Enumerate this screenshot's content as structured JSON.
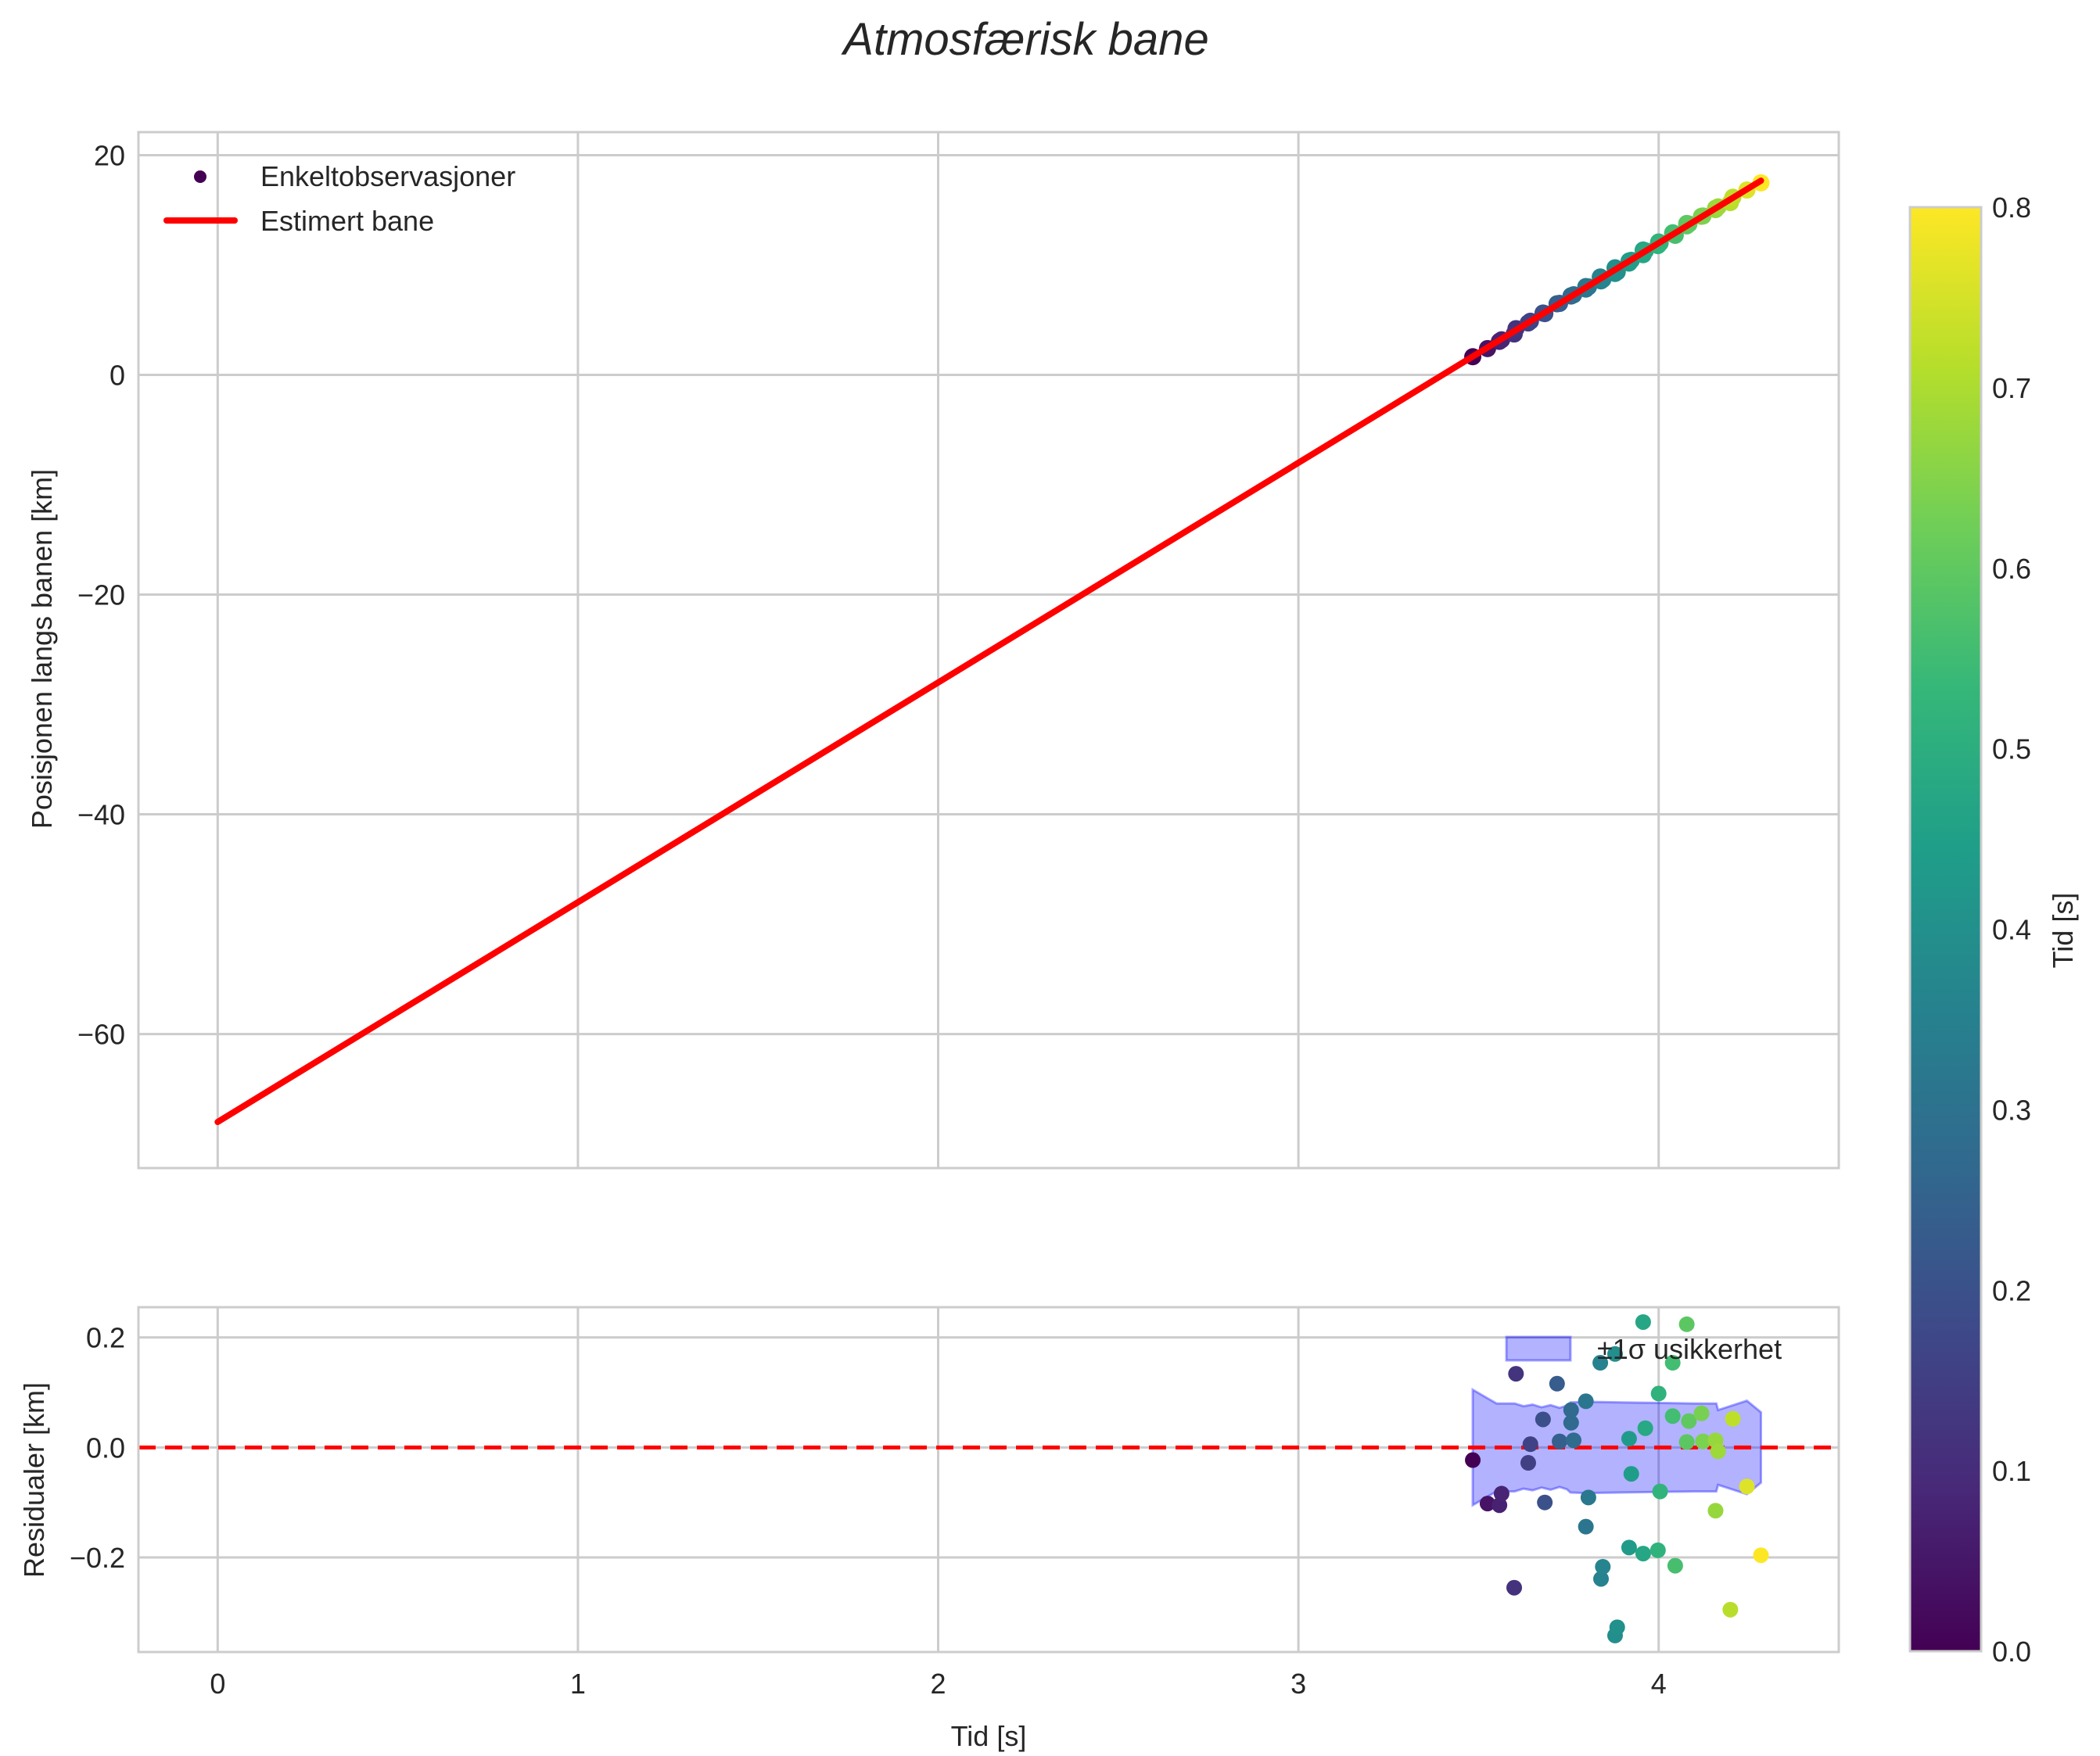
{
  "figure": {
    "title": "Atmosfærisk bane",
    "background": "#ffffff",
    "grid_color": "#cccccc",
    "spine_color": "#cccccc"
  },
  "chart_data": [
    {
      "type": "scatter",
      "panel": "top",
      "title": "Atmosfærisk bane",
      "xlabel": "",
      "ylabel": "Posisjonen langs banen [km]",
      "xlim": [
        -0.22,
        4.5
      ],
      "ylim": [
        -72.2,
        22.1
      ],
      "xticks": [
        0,
        1,
        2,
        3,
        4
      ],
      "yticks": [
        20,
        0,
        -20,
        -40,
        -60
      ],
      "ytick_labels": [
        "20",
        "0",
        "−20",
        "−40",
        "−60"
      ],
      "grid": true,
      "legend": {
        "position": "upper left",
        "entries": [
          {
            "label": "Enkeltobservasjoner",
            "kind": "marker",
            "color": "#440154"
          },
          {
            "label": "Estimert bane",
            "kind": "line",
            "color": "#ff0000"
          }
        ]
      },
      "series": [
        {
          "name": "Estimert bane",
          "kind": "line",
          "color": "#ff0000",
          "x": [
            0.0,
            4.284
          ],
          "y": [
            -68.0,
            17.68
          ]
        },
        {
          "name": "Enkeltobservasjoner",
          "kind": "scatter",
          "colormap": "viridis",
          "note": "y = -68 + 20*t + residual; color = t - 3.484"
        }
      ]
    },
    {
      "type": "scatter",
      "panel": "bottom",
      "xlabel": "Tid [s]",
      "ylabel": "Residualer [km]",
      "xlim": [
        -0.22,
        4.5
      ],
      "ylim": [
        -0.372,
        0.255
      ],
      "xticks": [
        0,
        1,
        2,
        3,
        4
      ],
      "xtick_labels": [
        "0",
        "1",
        "2",
        "3",
        "4"
      ],
      "yticks": [
        0.2,
        0.0,
        -0.2
      ],
      "ytick_labels": [
        "0.2",
        "0.0",
        "−0.2"
      ],
      "grid": true,
      "zero_line": {
        "y": 0.0,
        "color": "#ff0000",
        "style": "dashed"
      },
      "legend": {
        "position": "upper right",
        "entries": [
          {
            "label": "±1σ usikkerhet",
            "kind": "patch",
            "color": "#0000ff",
            "alpha": 0.3
          }
        ]
      },
      "band": {
        "label": "±1σ usikkerhet",
        "color": "#0000ff",
        "alpha": 0.3,
        "upper": [
          [
            3.484,
            0.105
          ],
          [
            3.55,
            0.08
          ],
          [
            3.6,
            0.08
          ],
          [
            3.625,
            0.075
          ],
          [
            3.65,
            0.078
          ],
          [
            3.675,
            0.073
          ],
          [
            3.7,
            0.077
          ],
          [
            3.725,
            0.072
          ],
          [
            3.745,
            0.076
          ],
          [
            3.755,
            0.082
          ],
          [
            3.8,
            0.083
          ],
          [
            3.9,
            0.082
          ],
          [
            4.0,
            0.081
          ],
          [
            4.1,
            0.08
          ],
          [
            4.16,
            0.08
          ],
          [
            4.165,
            0.068
          ],
          [
            4.245,
            0.085
          ],
          [
            4.284,
            0.064
          ]
        ],
        "lower": [
          [
            3.484,
            -0.105
          ],
          [
            3.55,
            -0.08
          ],
          [
            3.6,
            -0.08
          ],
          [
            3.625,
            -0.075
          ],
          [
            3.65,
            -0.078
          ],
          [
            3.675,
            -0.073
          ],
          [
            3.7,
            -0.077
          ],
          [
            3.725,
            -0.072
          ],
          [
            3.745,
            -0.076
          ],
          [
            3.755,
            -0.082
          ],
          [
            3.8,
            -0.083
          ],
          [
            3.9,
            -0.082
          ],
          [
            4.0,
            -0.081
          ],
          [
            4.1,
            -0.08
          ],
          [
            4.16,
            -0.08
          ],
          [
            4.165,
            -0.068
          ],
          [
            4.245,
            -0.085
          ],
          [
            4.284,
            -0.064
          ]
        ]
      },
      "points": [
        {
          "t": 3.484,
          "r": -0.023
        },
        {
          "t": 3.525,
          "r": -0.102
        },
        {
          "t": 3.558,
          "r": -0.105
        },
        {
          "t": 3.564,
          "r": -0.084
        },
        {
          "t": 3.599,
          "r": -0.255
        },
        {
          "t": 3.604,
          "r": 0.134
        },
        {
          "t": 3.638,
          "r": -0.028
        },
        {
          "t": 3.644,
          "r": 0.006
        },
        {
          "t": 3.679,
          "r": 0.051
        },
        {
          "t": 3.684,
          "r": -0.1
        },
        {
          "t": 3.718,
          "r": 0.116
        },
        {
          "t": 3.725,
          "r": 0.011
        },
        {
          "t": 3.757,
          "r": 0.068
        },
        {
          "t": 3.757,
          "r": 0.045
        },
        {
          "t": 3.764,
          "r": 0.013
        },
        {
          "t": 3.798,
          "r": 0.084
        },
        {
          "t": 3.798,
          "r": -0.144
        },
        {
          "t": 3.805,
          "r": -0.091
        },
        {
          "t": 3.838,
          "r": 0.154
        },
        {
          "t": 3.84,
          "r": -0.239
        },
        {
          "t": 3.845,
          "r": -0.217
        },
        {
          "t": 3.879,
          "r": 0.17
        },
        {
          "t": 3.879,
          "r": -0.342
        },
        {
          "t": 3.885,
          "r": -0.327
        },
        {
          "t": 3.918,
          "r": 0.016
        },
        {
          "t": 3.918,
          "r": -0.182
        },
        {
          "t": 3.924,
          "r": -0.048
        },
        {
          "t": 3.957,
          "r": 0.228
        },
        {
          "t": 3.957,
          "r": -0.193
        },
        {
          "t": 3.963,
          "r": 0.035
        },
        {
          "t": 3.998,
          "r": -0.187
        },
        {
          "t": 4.0,
          "r": 0.098
        },
        {
          "t": 4.004,
          "r": -0.08
        },
        {
          "t": 4.039,
          "r": 0.154
        },
        {
          "t": 4.039,
          "r": 0.057
        },
        {
          "t": 4.046,
          "r": -0.215
        },
        {
          "t": 4.078,
          "r": 0.224
        },
        {
          "t": 4.078,
          "r": 0.01
        },
        {
          "t": 4.084,
          "r": 0.048
        },
        {
          "t": 4.119,
          "r": 0.062
        },
        {
          "t": 4.123,
          "r": 0.011
        },
        {
          "t": 4.158,
          "r": 0.013
        },
        {
          "t": 4.158,
          "r": -0.115
        },
        {
          "t": 4.165,
          "r": -0.007
        },
        {
          "t": 4.199,
          "r": -0.295
        },
        {
          "t": 4.206,
          "r": 0.052
        },
        {
          "t": 4.245,
          "r": -0.071
        },
        {
          "t": 4.284,
          "r": -0.196
        }
      ]
    }
  ],
  "colorbar": {
    "label": "Tid [s]",
    "colormap": "viridis",
    "range": [
      0.0,
      0.8
    ],
    "ticks": [
      0.0,
      0.1,
      0.2,
      0.3,
      0.4,
      0.5,
      0.6,
      0.7,
      0.8
    ],
    "tick_labels": [
      "0.0",
      "0.1",
      "0.2",
      "0.3",
      "0.4",
      "0.5",
      "0.6",
      "0.7",
      "0.8"
    ],
    "stops": [
      "#440154",
      "#482878",
      "#3e4989",
      "#31688e",
      "#26828e",
      "#1f9e89",
      "#35b779",
      "#6ece58",
      "#b5de2b",
      "#fde725"
    ]
  },
  "model": {
    "intercept": -68.0,
    "slope": 20.0,
    "t0": 3.484
  }
}
